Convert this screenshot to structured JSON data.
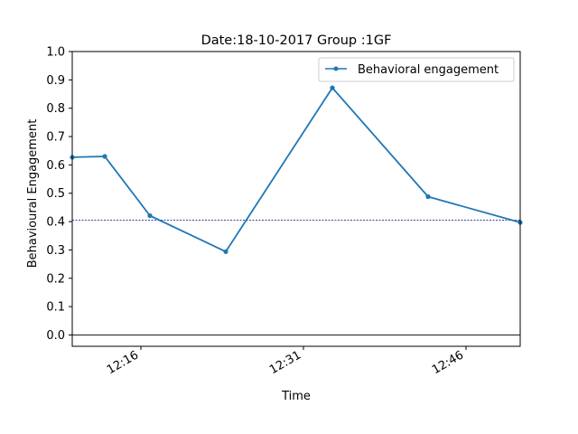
{
  "chart_data": {
    "type": "line",
    "title": "Date:18-10-2017 Group :1GF",
    "xlabel": "Time",
    "ylabel": "Behavioural Engagement",
    "x": [
      "12:09:40",
      "12:12:40",
      "12:16:50",
      "12:23:50",
      "12:33:40",
      "12:42:30",
      "12:51:00"
    ],
    "series": [
      {
        "name": "Behavioral engagement",
        "values": [
          0.627,
          0.63,
          0.421,
          0.294,
          0.872,
          0.488,
          0.397
        ],
        "color": "#1f77b4"
      }
    ],
    "xlim": [
      "12:09:40",
      "12:51:00"
    ],
    "ylim": [
      -0.04,
      1.0
    ],
    "x_ticks": [
      {
        "time": "12:16",
        "label": "12:16"
      },
      {
        "time": "12:31",
        "label": "12:31"
      },
      {
        "time": "12:46",
        "label": "12:46"
      }
    ],
    "y_ticks": [
      "0.0",
      "0.1",
      "0.2",
      "0.3",
      "0.4",
      "0.5",
      "0.6",
      "0.7",
      "0.8",
      "0.9",
      "1.0"
    ],
    "mean_line": {
      "value": 0.405,
      "style": "dashed",
      "color": "#000080"
    },
    "zero_line": {
      "value": 0.0,
      "color": "#000000"
    },
    "grid": false,
    "legend": "top-right"
  }
}
